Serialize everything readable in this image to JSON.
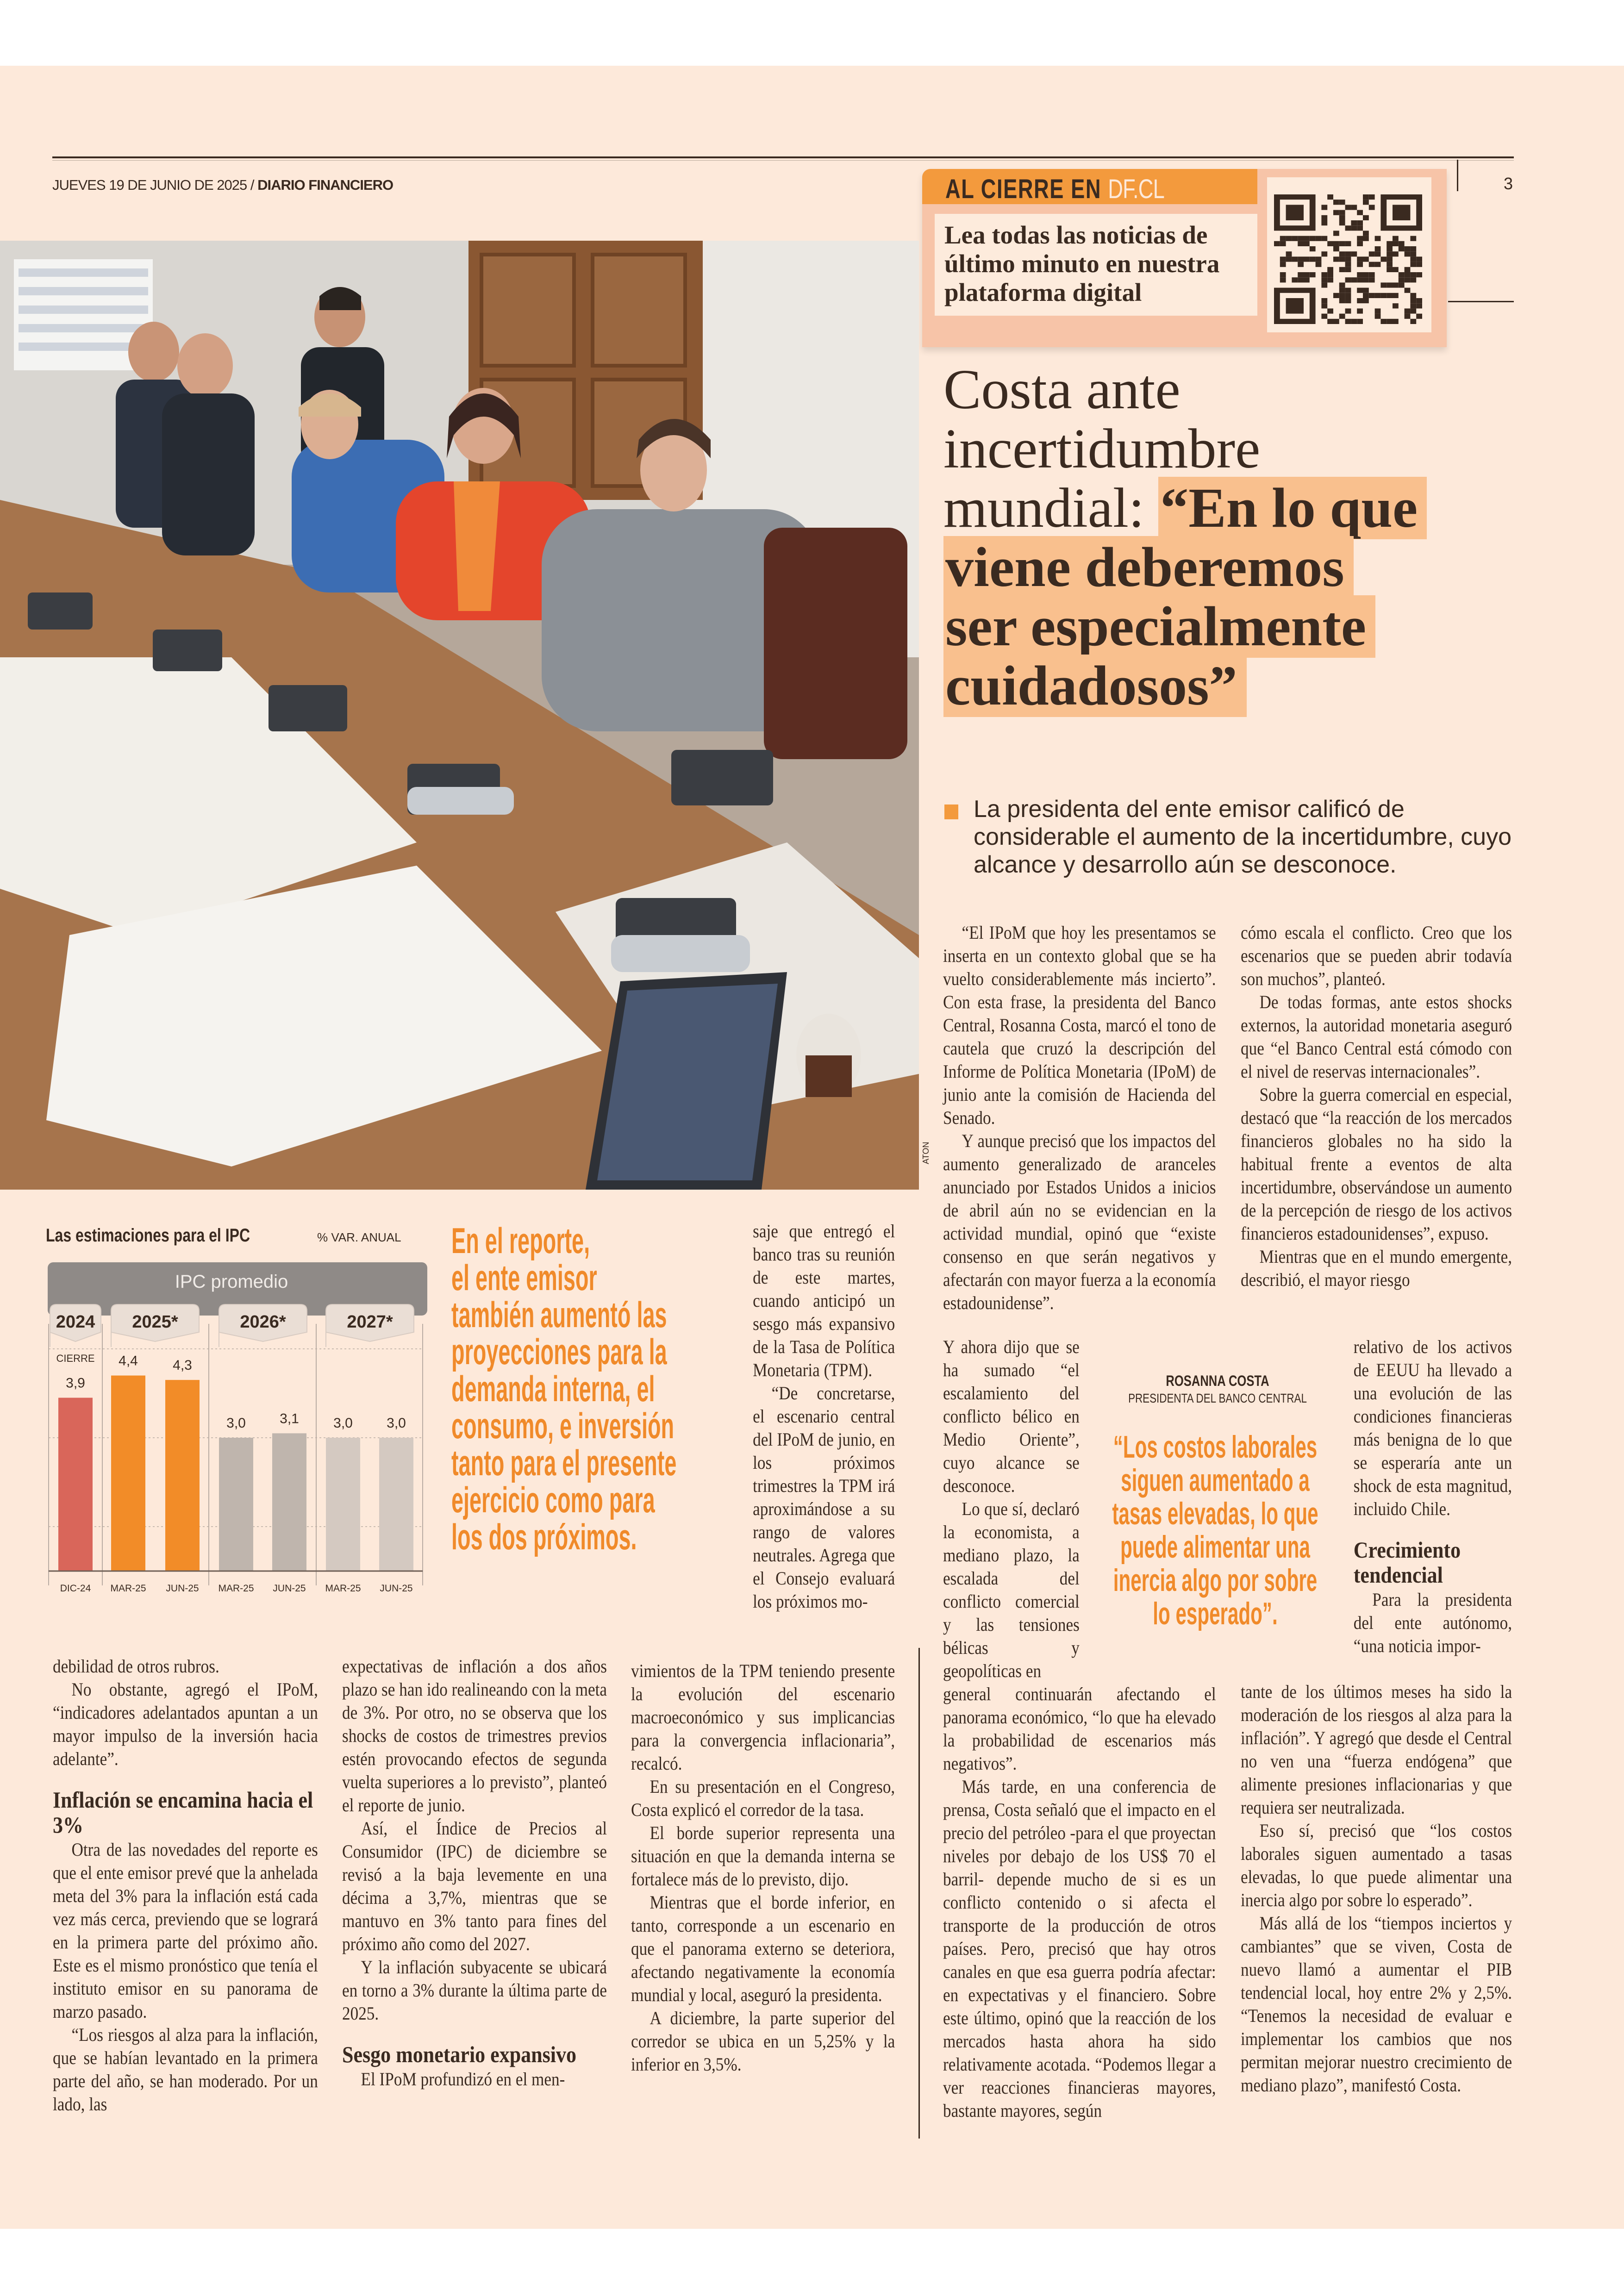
{
  "header": {
    "date": "JUEVES 19 DE JUNIO DE 2025 / ",
    "publication": "DIARIO FINANCIERO",
    "page_number": "3"
  },
  "promo": {
    "title": "AL CIERRE EN ",
    "site": "DF.CL",
    "text": "Lea todas las noticias de último minuto en nuestra plataforma digital",
    "qr_icon": "qr-code"
  },
  "photo": {
    "credit": "ATON"
  },
  "headline": {
    "plain": [
      "Costa ante",
      "incertidumbre",
      "mundial: "
    ],
    "quote_lines": [
      "“En lo que",
      "viene deberemos",
      "ser especialmente",
      "cuidadosos”"
    ]
  },
  "lede": "La presidenta del ente emisor calificó de considerable el aumento de la incertidumbre, cuyo alcance y desarrollo aún se desconoce.",
  "chart_data": {
    "type": "bar",
    "title": "Las estimaciones para el IPC",
    "unit": "% VAR. ANUAL",
    "header": "IPC promedio",
    "groups": [
      {
        "label": "2024",
        "categories": [
          "DIC-24"
        ],
        "values": [
          3.9
        ],
        "value_labels": [
          "3,9"
        ],
        "note": "CIERRE",
        "color": "#d9665a"
      },
      {
        "label": "2025*",
        "categories": [
          "MAR-25",
          "JUN-25"
        ],
        "values": [
          4.4,
          4.3
        ],
        "value_labels": [
          "4,4",
          "4,3"
        ],
        "color": "#f28c28"
      },
      {
        "label": "2026*",
        "categories": [
          "MAR-25",
          "JUN-25"
        ],
        "values": [
          3.0,
          3.1
        ],
        "value_labels": [
          "3,0",
          "3,1"
        ],
        "color": "#bfb5ad"
      },
      {
        "label": "2027*",
        "categories": [
          "MAR-25",
          "JUN-25"
        ],
        "values": [
          3.0,
          3.0
        ],
        "value_labels": [
          "3,0",
          "3,0"
        ],
        "color": "#d4c9c1"
      }
    ],
    "ylim": [
      0,
      5
    ],
    "gridlines": [
      1,
      3,
      5
    ],
    "xlabel": "",
    "ylabel": ""
  },
  "pullquote": {
    "lines": [
      "En el reporte,",
      "el ente emisor",
      "también aumentó las",
      "proyecciones para la",
      "demanda interna, el",
      "consumo, e inversión",
      "tanto para el presente",
      "ejercicio  como para",
      "los dos próximos."
    ]
  },
  "quote": {
    "name": "ROSANNA COSTA",
    "role": "PRESIDENTA DEL BANCO CENTRAL",
    "lines": [
      "“Los costos laborales",
      "siguen aumentado a",
      "tasas elevadas, lo que",
      "puede alimentar una",
      "inercia algo por sobre",
      "lo esperado”."
    ]
  },
  "article": {
    "left_col1": {
      "paras": [
        {
          "t": "debilidad de otros rubros.",
          "ni": true
        },
        {
          "t": "No obstante, agregó el IPoM, “indicadores adelantados apuntan a un mayor impulso de la inversión hacia adelante”."
        },
        {
          "h": "Inflación se encamina hacia el 3%"
        },
        {
          "t": "Otra de las novedades del reporte es que el ente emisor prevé que la anhelada meta del 3% para la inflación está cada vez más cerca, previendo que se logrará en la primera parte del próximo año. Este es el mismo pronóstico que tenía el instituto emisor en su panorama de marzo pasado."
        },
        {
          "t": "“Los riesgos al alza para la inflación, que se habían levantado en la primera parte del año, se han moderado. Por un lado, las"
        }
      ]
    },
    "left_col2": {
      "paras": [
        {
          "t": "expectativas de inflación a dos años plazo se han ido realineando con la meta de 3%. Por otro, no se observa que los shocks de costos de trimestres previos estén provocando efectos de segunda vuelta superiores a lo previsto”, planteó el reporte de junio.",
          "ni": true
        },
        {
          "t": "Así, el Índice de Precios al Consumidor (IPC) de diciembre se revisó a la baja levemente en una décima a 3,7%, mientras que se mantuvo en 3% tanto para fines del próximo año como del 2027."
        },
        {
          "t": "Y la inflación subyacente se ubicará en torno a 3% durante la última parte de 2025."
        },
        {
          "h": "Sesgo monetario expansivo"
        },
        {
          "t": "El IPoM profundizó en el men-"
        }
      ]
    },
    "mid_narrow": {
      "paras": [
        {
          "t": "saje que entregó el banco tras su reunión de este martes, cuando anticipó un sesgo más expansivo de la Tasa de Política Monetaria (TPM).",
          "ni": true
        },
        {
          "t": "“De concretarse, el escenario central del IPoM de junio, en los próximos trimestres la TPM irá aproximándose a su rango de valores neutrales. Agrega que el Consejo evaluará los próximos mo-"
        }
      ]
    },
    "mid_col3": {
      "paras": [
        {
          "t": "vimientos de la TPM teniendo presente la evolución del escenario macroeconómico y sus implicancias para la convergencia inflacionaria”, recalcó.",
          "ni": true
        },
        {
          "t": "En su presentación en el Congreso, Costa explicó el corredor de la tasa."
        },
        {
          "t": "El borde superior representa una situación en que la demanda interna se fortalece más de lo previsto, dijo."
        },
        {
          "t": "Mientras que el borde inferior, en tanto, corresponde a un escenario en que el panorama externo se deteriora, afectando negativamente la economía mundial y local, aseguró la presidenta."
        },
        {
          "t": "A diciembre, la parte superior del corredor se ubica en un 5,25% y la inferior en 3,5%."
        }
      ]
    },
    "right_a_top": {
      "paras": [
        {
          "t": "“El IPoM que hoy les presentamos se inserta en un contexto global que se ha vuelto considerablemente más incierto”. Con esta frase, la presidenta del Banco Central, Rosanna Costa, marcó el tono de cautela que cruzó la descripción del Informe de Política Monetaria (IPoM) de junio ante la comisión de Hacienda del Senado."
        },
        {
          "t": "Y aunque precisó que los impactos del aumento generalizado de aranceles anunciado por Estados Unidos a inicios de abril aún no se evidencian en la actividad mundial, opinó que “existe consenso en que serán negativos y afectarán con mayor fuerza a la economía estadounidense”."
        }
      ]
    },
    "right_a_narrow": {
      "paras": [
        {
          "t": "Y ahora dijo que se ha sumado “el escalamiento del conflicto bélico en Medio Oriente”, cuyo alcance se desconoce.",
          "ni": true
        },
        {
          "t": "Lo que sí, declaró la economista, a mediano plazo, la escalada del conflicto comercial y las tensiones bélicas y geopolíticas en"
        }
      ]
    },
    "right_a_bottom": {
      "paras": [
        {
          "t": "general continuarán afectando el panorama económico, “lo que ha elevado la probabilidad de escenarios más negativos”.",
          "ni": true
        },
        {
          "t": "Más tarde, en una conferencia de prensa, Costa señaló que el impacto en el precio del petróleo -para el que proyectan niveles por debajo de los US$ 70 el barril- depende mucho de si es un conflicto contenido o si afecta el transporte de la producción de otros países. Pero, precisó que hay otros canales en que esa guerra podría afectar: en expectativas y el financiero. Sobre este último, opinó que la reacción de los mercados hasta ahora ha sido relativamente acotada. “Podemos llegar a ver reacciones financieras mayores, bastante mayores, según"
        }
      ]
    },
    "right_b_top": {
      "paras": [
        {
          "t": "cómo escala el conflicto. Creo que los escenarios que se pueden abrir todavía son muchos”, planteó.",
          "ni": true
        },
        {
          "t": "De todas formas, ante estos shocks externos, la autoridad monetaria aseguró que “el Banco Central está cómodo con el nivel de reservas internacionales”."
        },
        {
          "t": "Sobre la guerra comercial en especial, destacó que “la reacción de los mercados financieros globales no ha sido la habitual frente a eventos de alta incertidumbre, observándose un aumento de la percepción de riesgo de los activos financieros estadounidenses”, expuso."
        },
        {
          "t": "Mientras que en el mundo emergente, describió, el mayor riesgo"
        }
      ]
    },
    "right_b_narrow": {
      "paras": [
        {
          "t": "relativo de los activos de EEUU ha llevado a una evolución de las condiciones financieras más benigna de lo que se esperaría ante un shock de esta magnitud, incluido Chile.",
          "ni": true
        },
        {
          "h": "Crecimiento tendencial"
        },
        {
          "t": "Para la presidenta del ente autónomo, “una noticia impor-"
        }
      ]
    },
    "right_b_bottom": {
      "paras": [
        {
          "t": "tante de los últimos meses ha sido la moderación de los riesgos al alza para la inflación”. Y agregó que desde el Central no ven una “fuerza endógena” que alimente presiones inflacionarias y que requiera ser neutralizada.",
          "ni": true
        },
        {
          "t": "Eso sí, precisó que “los costos laborales siguen aumentado a tasas elevadas, lo que puede alimentar una inercia algo por sobre lo esperado”."
        },
        {
          "t": "Más allá de los “tiempos inciertos y cambiantes” que se viven, Costa de nuevo llamó a aumentar el PIB tendencial local, hoy entre 2% y 2,5%. “Tenemos la necesidad de evaluar e implementar los cambios que nos permitan mejorar nuestro crecimiento de mediano plazo”, manifestó Costa."
        }
      ]
    }
  }
}
